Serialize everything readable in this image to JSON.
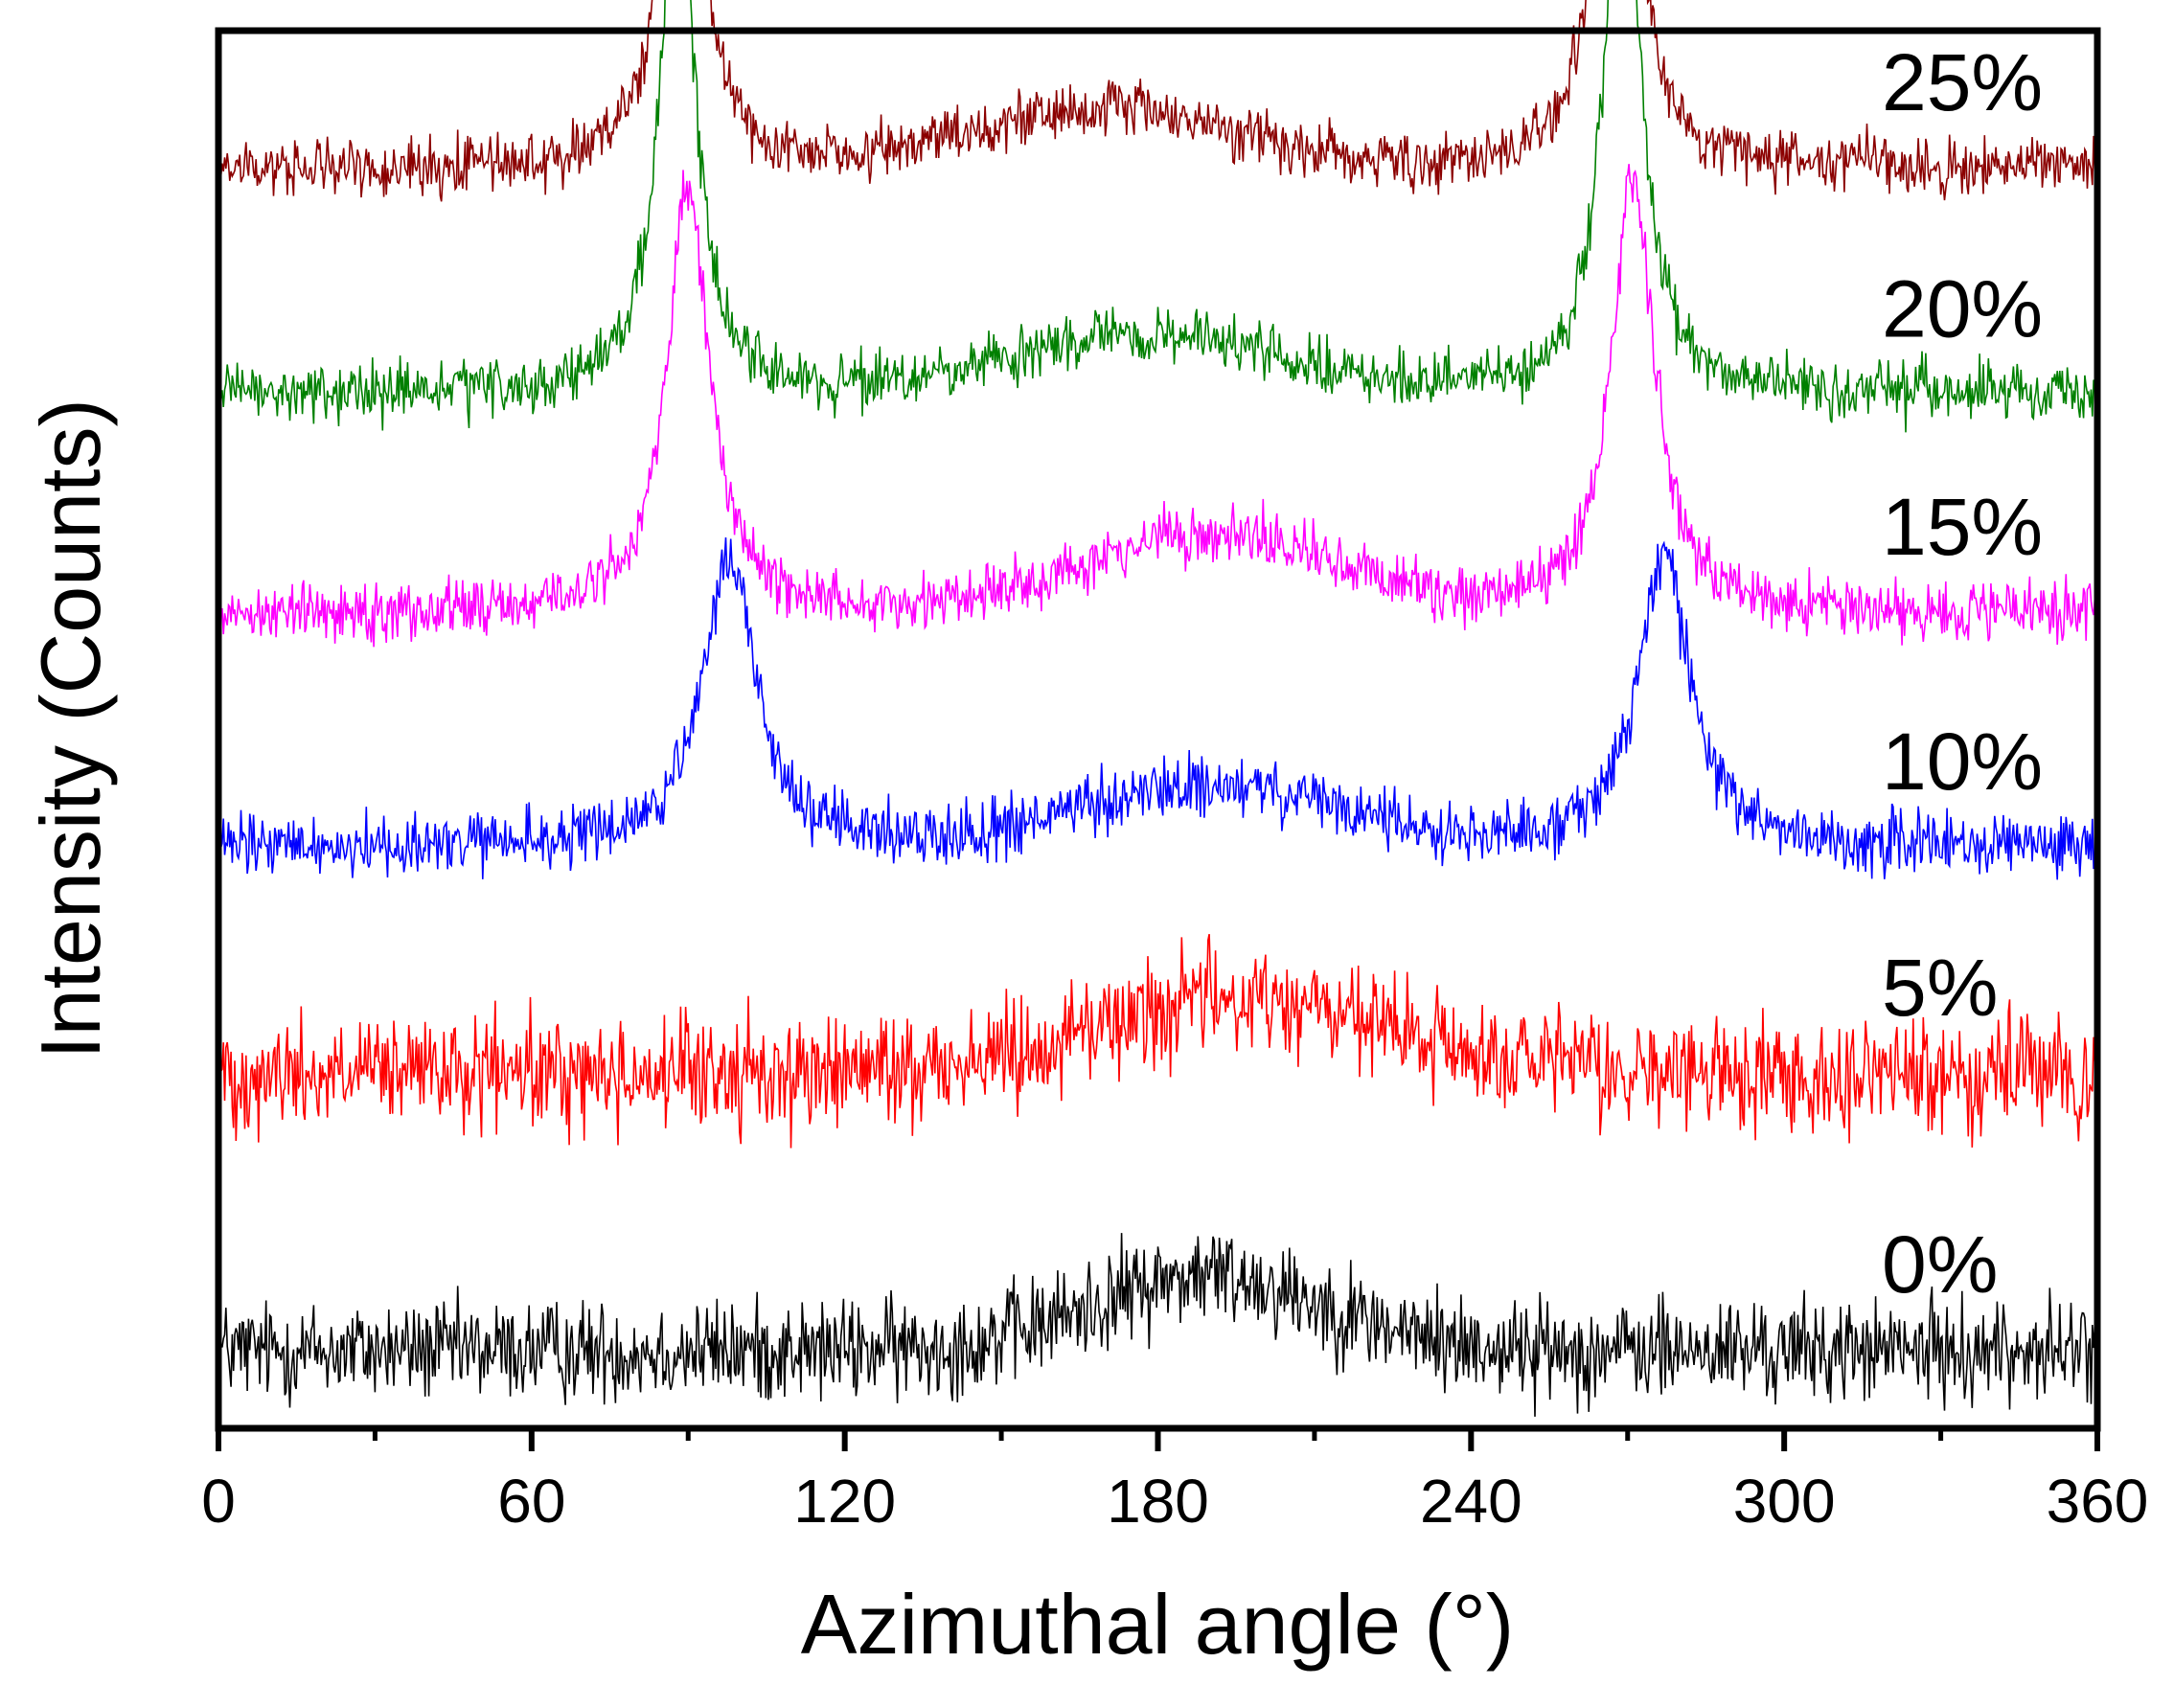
{
  "chart_data": {
    "type": "line",
    "title": "",
    "xlabel": "Azimuthal angle (°)",
    "ylabel": "Intensity (Counts)",
    "xlim": [
      0,
      360
    ],
    "x_ticks": [
      0,
      60,
      120,
      180,
      240,
      300,
      360
    ],
    "x_minor_step": 30,
    "y_ticks_shown": false,
    "grid": false,
    "legend": "inline labels at right",
    "series": [
      {
        "name": "0%",
        "label": "0%",
        "color": "#000000",
        "baseline": 0.0,
        "noise": 0.45,
        "peaks": [],
        "humps": [
          {
            "center": 190,
            "width": 22,
            "height": 0.45
          }
        ]
      },
      {
        "name": "5%",
        "label": "5%",
        "color": "#ff0000",
        "baseline": 1.65,
        "noise": 0.5,
        "peaks": [],
        "humps": [
          {
            "center": 195,
            "width": 28,
            "height": 0.45
          }
        ]
      },
      {
        "name": "10%",
        "label": "10%",
        "color": "#0000ff",
        "baseline": 3.0,
        "noise": 0.28,
        "peaks": [
          {
            "center": 98,
            "width": 6,
            "height": 1.75
          },
          {
            "center": 277,
            "width": 6,
            "height": 1.75
          }
        ],
        "humps": [
          {
            "center": 190,
            "width": 25,
            "height": 0.35
          }
        ]
      },
      {
        "name": "15%",
        "label": "15%",
        "color": "#ff00ff",
        "baseline": 4.4,
        "noise": 0.26,
        "peaks": [
          {
            "center": 90,
            "width": 5,
            "height": 2.5
          },
          {
            "center": 271,
            "width": 5,
            "height": 2.6
          }
        ],
        "humps": [
          {
            "center": 190,
            "width": 25,
            "height": 0.45
          }
        ]
      },
      {
        "name": "20%",
        "label": "20%",
        "color": "#008000",
        "baseline": 5.7,
        "noise": 0.26,
        "peaks": [
          {
            "center": 88,
            "width": 4,
            "height": 3.2
          },
          {
            "center": 269,
            "width": 4,
            "height": 3.5
          }
        ],
        "humps": [
          {
            "center": 178,
            "width": 25,
            "height": 0.35
          }
        ]
      },
      {
        "name": "25%",
        "label": "25%",
        "color": "#8b0000",
        "baseline": 7.05,
        "noise": 0.26,
        "peaks": [
          {
            "center": 89,
            "width": 4,
            "height": 3.0
          },
          {
            "center": 268,
            "width": 4,
            "height": 3.4
          }
        ],
        "humps": [
          {
            "center": 170,
            "width": 25,
            "height": 0.35
          }
        ]
      }
    ]
  }
}
